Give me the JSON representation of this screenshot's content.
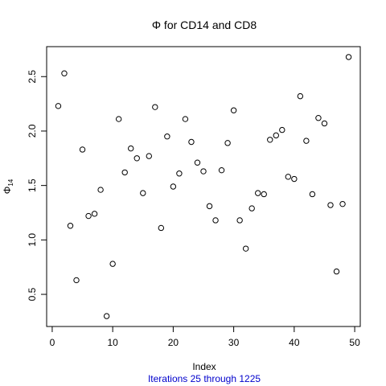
{
  "chart_data": {
    "type": "scatter",
    "title": "Φ  for  CD14  and  CD8",
    "xlabel": "Index",
    "ylabel_main": "Φ",
    "ylabel_sub": "14",
    "subtitle": "Iterations 25 through 1225",
    "xlim": [
      0,
      50
    ],
    "ylim": [
      0.25,
      2.75
    ],
    "xticks": [
      0,
      10,
      20,
      30,
      40,
      50
    ],
    "yticks": [
      0.5,
      1.0,
      1.5,
      2.0,
      2.5
    ],
    "xtick_labels": [
      "0",
      "10",
      "20",
      "30",
      "40",
      "50"
    ],
    "ytick_labels": [
      "0.5",
      "1.0",
      "1.5",
      "2.0",
      "2.5"
    ],
    "grid": false,
    "legend": "none",
    "x": [
      1,
      2,
      3,
      4,
      5,
      6,
      7,
      8,
      9,
      10,
      11,
      12,
      13,
      14,
      15,
      16,
      17,
      18,
      19,
      20,
      21,
      22,
      23,
      24,
      25,
      26,
      27,
      28,
      29,
      30,
      31,
      32,
      33,
      34,
      35,
      36,
      37,
      38,
      39,
      40,
      41,
      42,
      43,
      44,
      45,
      46,
      47,
      48,
      49
    ],
    "y": [
      2.23,
      2.53,
      1.13,
      0.63,
      1.83,
      1.22,
      1.24,
      1.46,
      0.3,
      0.78,
      2.11,
      1.62,
      1.84,
      1.75,
      1.43,
      1.77,
      2.22,
      1.11,
      1.95,
      1.49,
      1.61,
      2.11,
      1.9,
      1.71,
      1.63,
      1.31,
      1.18,
      1.64,
      1.89,
      2.19,
      1.18,
      0.92,
      1.29,
      1.43,
      1.42,
      1.92,
      1.96,
      2.01,
      1.58,
      1.56,
      2.32,
      1.91,
      1.42,
      2.12,
      2.07,
      1.32,
      0.71,
      1.33,
      2.68
    ],
    "colors": {
      "marker": "#000000",
      "subtitle": "#0000cc"
    }
  }
}
